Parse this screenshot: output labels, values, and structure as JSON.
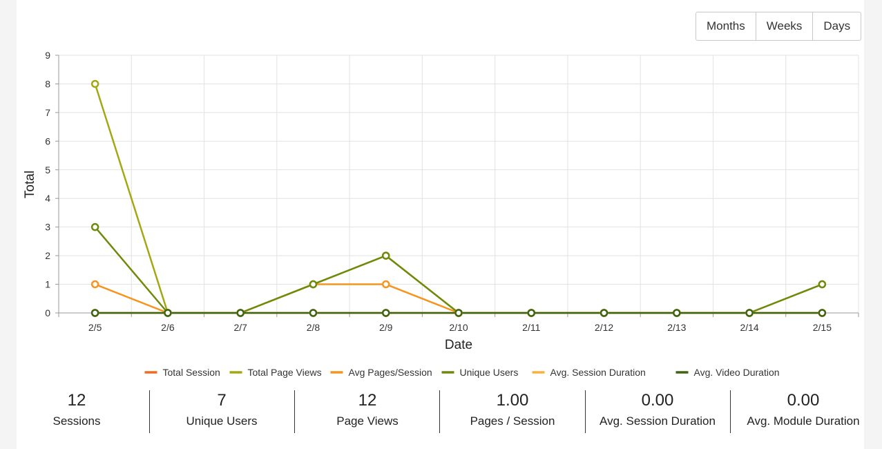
{
  "range_buttons": [
    "Months",
    "Weeks",
    "Days"
  ],
  "chart_data": {
    "type": "line",
    "x": [
      "2/5",
      "2/6",
      "2/7",
      "2/8",
      "2/9",
      "2/10",
      "2/11",
      "2/12",
      "2/13",
      "2/14",
      "2/15"
    ],
    "xlabel": "Date",
    "ylabel": "Total",
    "ylim": [
      0,
      9
    ],
    "yticks": [
      0,
      1,
      2,
      3,
      4,
      5,
      6,
      7,
      8,
      9
    ],
    "grid": true,
    "legend_position": "bottom",
    "series": [
      {
        "name": "Total Session",
        "color": "#f26b1d",
        "values": [
          0,
          0,
          0,
          0,
          0,
          0,
          0,
          0,
          0,
          0,
          0
        ]
      },
      {
        "name": "Total Page Views",
        "color": "#a3a812",
        "values": [
          8,
          0,
          0,
          1,
          2,
          0,
          0,
          0,
          0,
          0,
          1
        ]
      },
      {
        "name": "Avg Pages/Session",
        "color": "#f7941d",
        "values": [
          1,
          0,
          0,
          1,
          1,
          0,
          0,
          0,
          0,
          0,
          0
        ]
      },
      {
        "name": "Unique Users",
        "color": "#6e8a0a",
        "values": [
          3,
          0,
          0,
          1,
          2,
          0,
          0,
          0,
          0,
          0,
          1
        ]
      },
      {
        "name": "Avg. Session Duration",
        "color": "#fbb03b",
        "values": [
          0,
          0,
          0,
          0,
          0,
          0,
          0,
          0,
          0,
          0,
          0
        ]
      },
      {
        "name": "Avg. Video Duration",
        "color": "#3d6410",
        "values": [
          0,
          0,
          0,
          0,
          0,
          0,
          0,
          0,
          0,
          0,
          0
        ]
      }
    ]
  },
  "stats": [
    {
      "value": "12",
      "label": "Sessions"
    },
    {
      "value": "7",
      "label": "Unique Users"
    },
    {
      "value": "12",
      "label": "Page Views"
    },
    {
      "value": "1.00",
      "label": "Pages / Session"
    },
    {
      "value": "0.00",
      "label": "Avg. Session Duration"
    },
    {
      "value": "0.00",
      "label": "Avg. Module Duration"
    }
  ]
}
